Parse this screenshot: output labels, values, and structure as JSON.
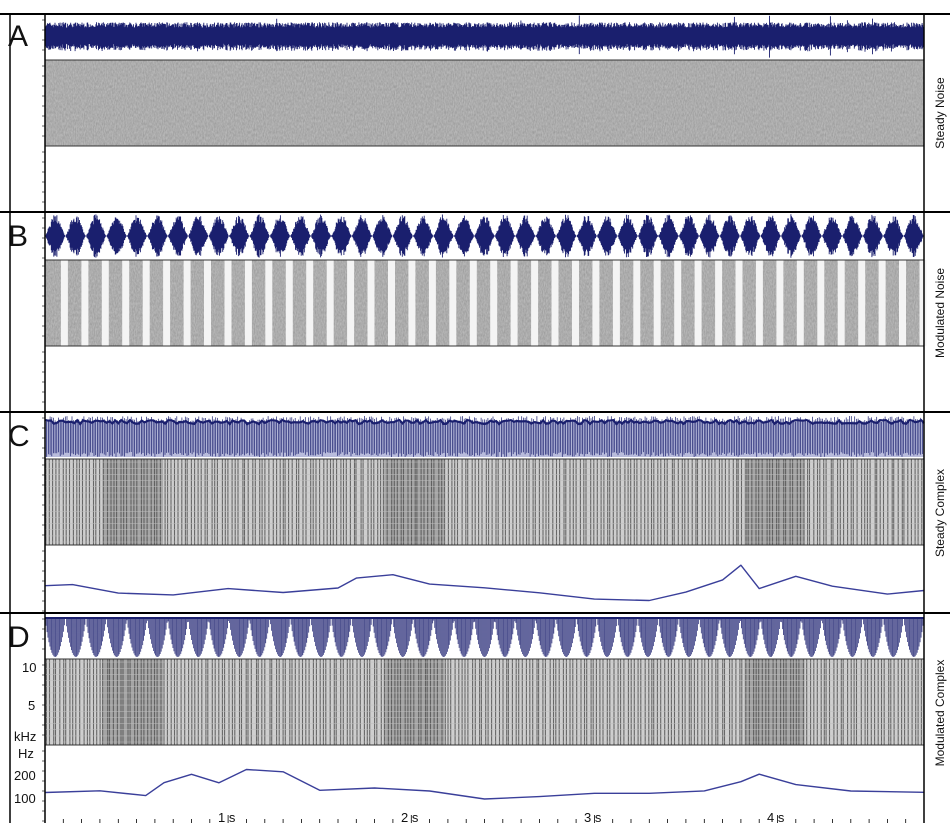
{
  "chart_data": {
    "type": "line",
    "x_axis": {
      "ticks": [
        "1 s",
        "2 s",
        "3 s",
        "4 s"
      ],
      "range_s": [
        0,
        4.8
      ]
    },
    "spectrogram_axis": {
      "ticks": [
        "10",
        "5"
      ],
      "unit": "kHz",
      "range": [
        0,
        11
      ]
    },
    "pitch_axis": {
      "ticks": [
        "200",
        "100"
      ],
      "unit": "Hz"
    },
    "panels": [
      {
        "letter": "A",
        "label": "Steady Noise",
        "waveform": "noise",
        "spectrogram": "noise",
        "pitch_contour": null
      },
      {
        "letter": "B",
        "label": "Modulated Noise",
        "waveform": "modulated-noise",
        "spectrogram": "modulated-noise",
        "pitch_contour": null
      },
      {
        "letter": "C",
        "label": "Steady Complex",
        "waveform": "complex",
        "spectrogram": "harmonic",
        "pitch_contour": {
          "t": [
            0,
            0.15,
            0.4,
            0.7,
            1.0,
            1.3,
            1.6,
            1.7,
            1.9,
            2.1,
            2.4,
            2.7,
            3.0,
            3.3,
            3.5,
            3.7,
            3.8,
            3.9,
            4.1,
            4.3,
            4.6,
            4.8
          ],
          "y": [
            0.35,
            0.4,
            0.2,
            0.15,
            0.3,
            0.2,
            0.3,
            0.55,
            0.62,
            0.4,
            0.3,
            0.2,
            0.05,
            0.0,
            0.2,
            0.5,
            0.85,
            0.3,
            0.6,
            0.35,
            0.15,
            0.25
          ]
        }
      },
      {
        "letter": "D",
        "label": "Modulated Complex",
        "waveform": "modulated-complex",
        "spectrogram": "harmonic",
        "pitch_contour": {
          "t": [
            0,
            0.3,
            0.55,
            0.65,
            0.8,
            0.95,
            1.1,
            1.3,
            1.5,
            1.8,
            2.1,
            2.4,
            2.7,
            3.0,
            3.3,
            3.6,
            3.8,
            3.9,
            4.1,
            4.4,
            4.8
          ],
          "y": [
            125,
            130,
            110,
            160,
            190,
            160,
            205,
            195,
            130,
            140,
            130,
            100,
            110,
            120,
            120,
            130,
            160,
            190,
            150,
            130,
            125
          ]
        }
      }
    ]
  },
  "colors": {
    "waveform": "#1a1f6e",
    "waveform_light": "#8a90c4",
    "contour": "#3a3f9a",
    "frame": "#000000"
  }
}
